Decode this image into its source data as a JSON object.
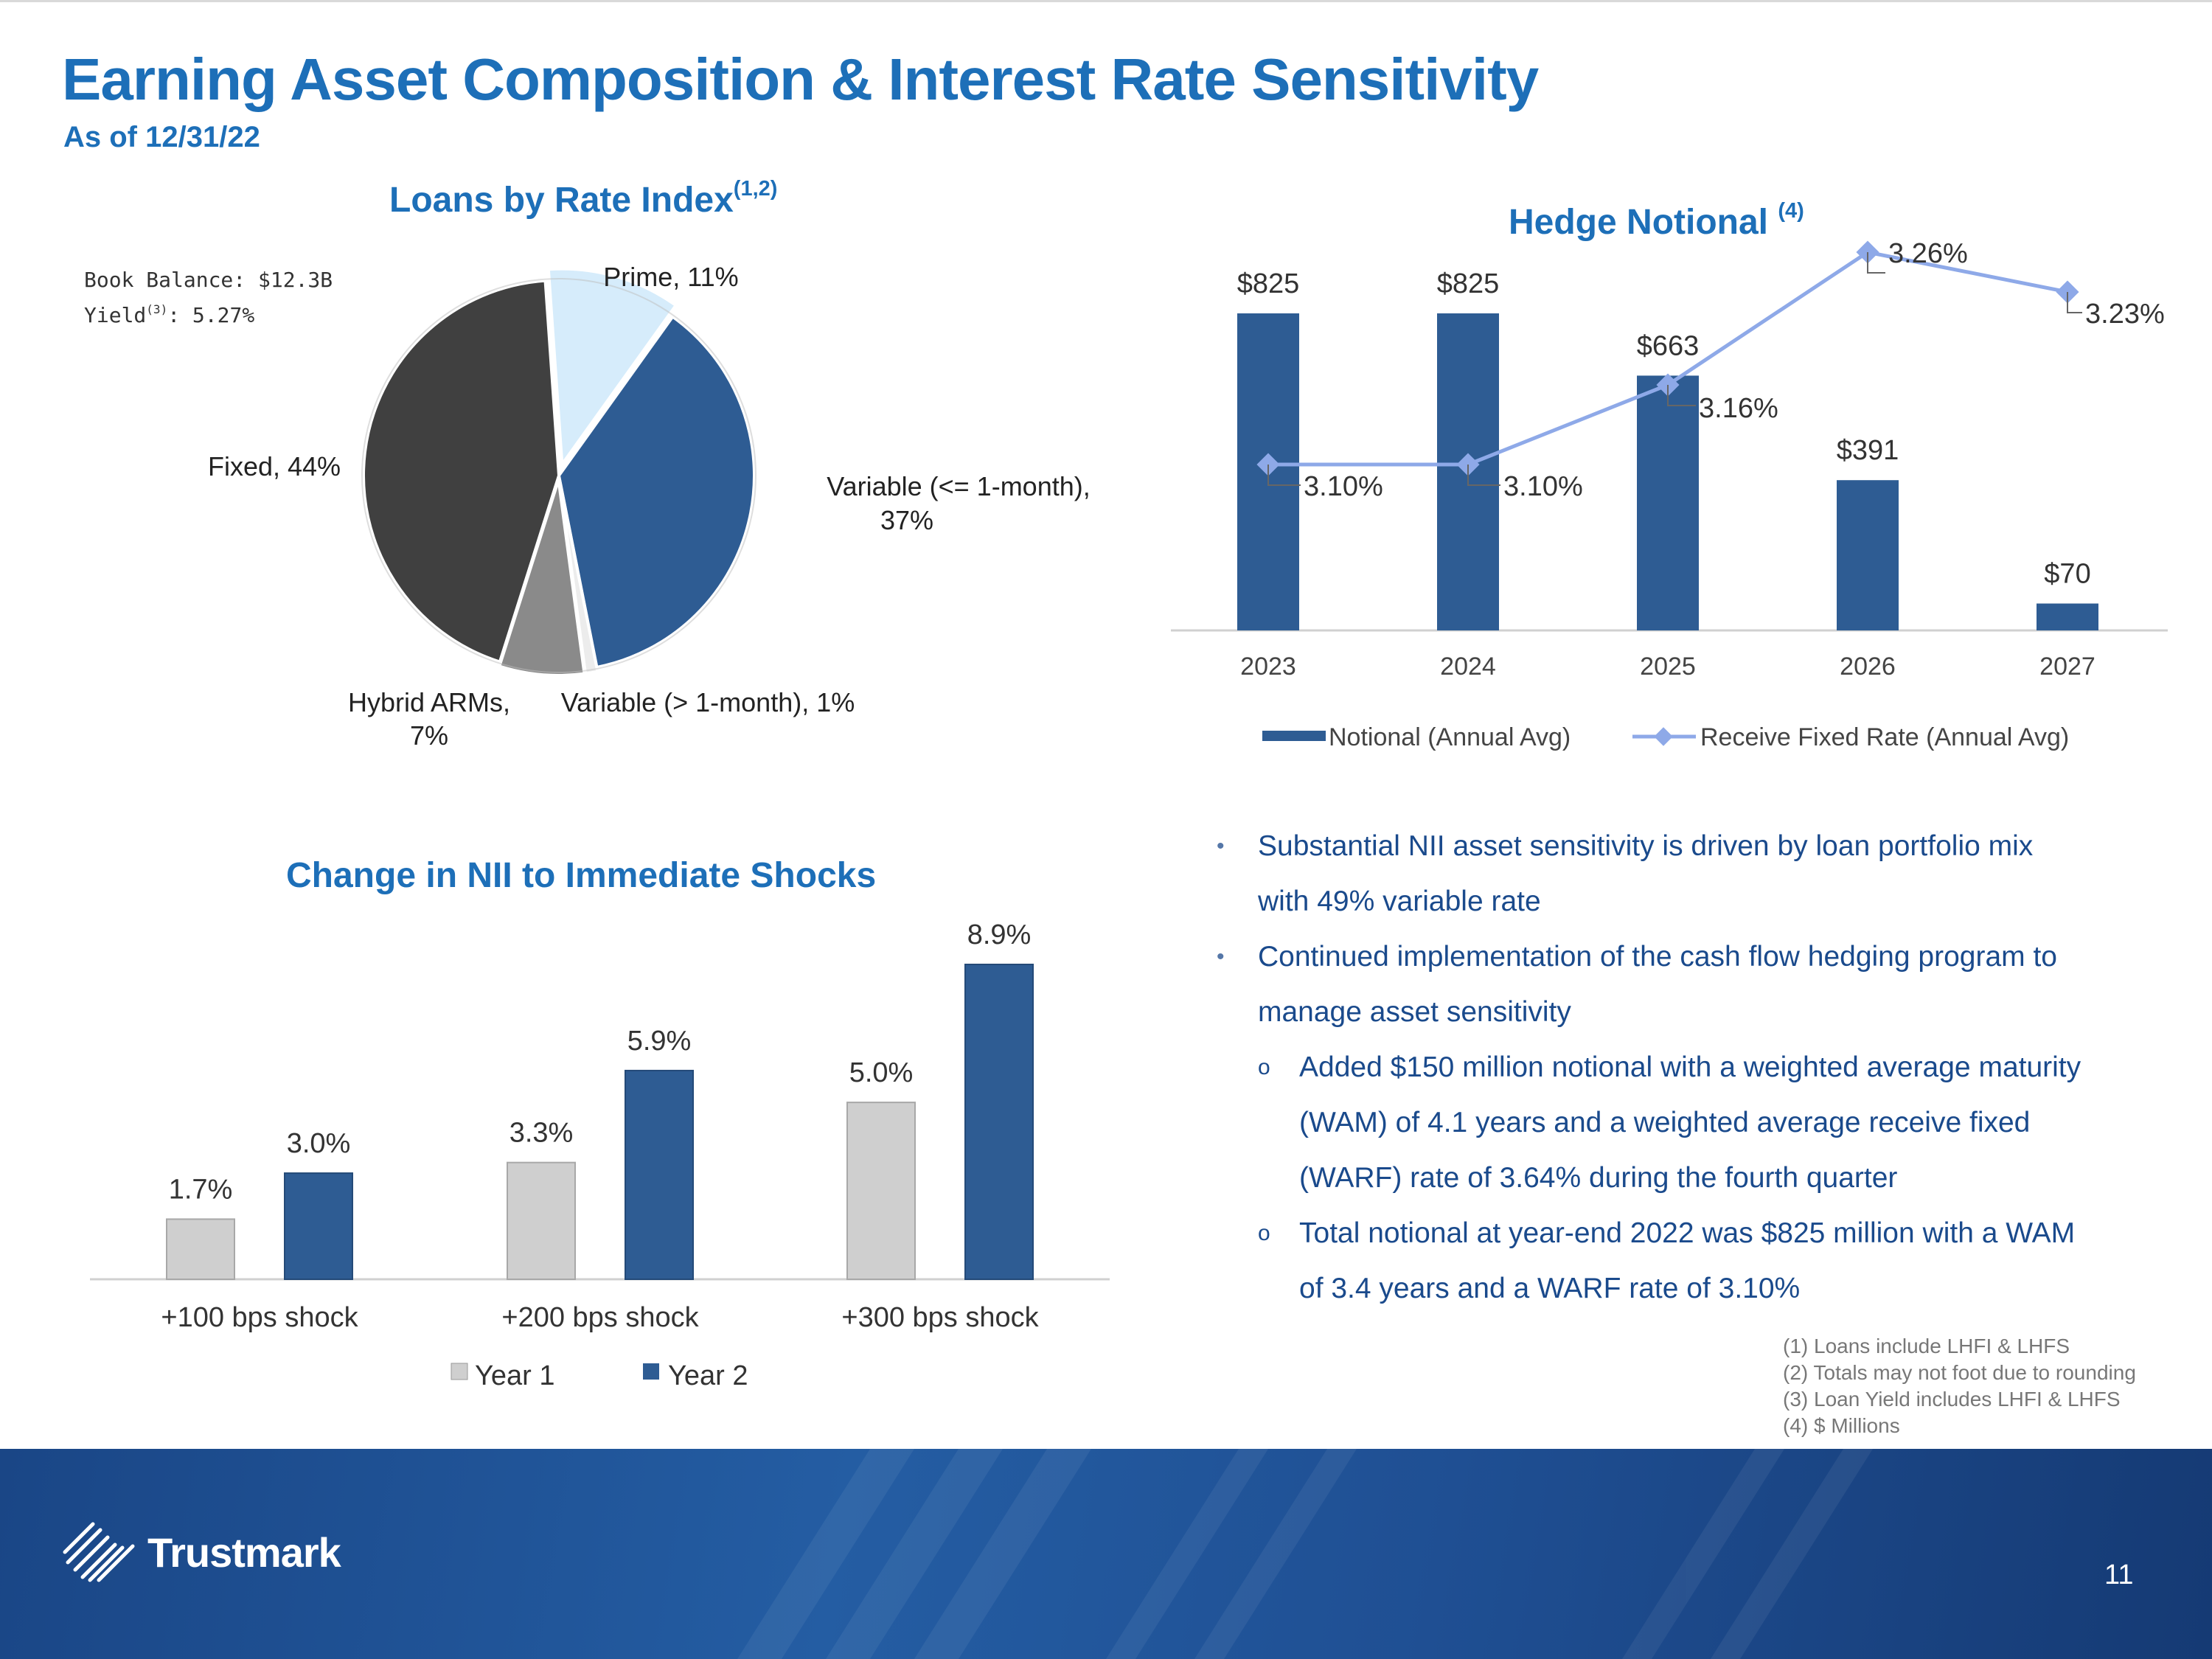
{
  "header": {
    "title": "Earning Asset Composition & Interest Rate Sensitivity",
    "subtitle": "As of 12/31/22"
  },
  "pie": {
    "title": "Loans by Rate Index",
    "title_sup": "(1,2)",
    "book_balance": "Book Balance: $12.3B",
    "yield_label": "Yield",
    "yield_sup": "(3)",
    "yield_value": ": 5.27%"
  },
  "hedge": {
    "title": "Hedge Notional",
    "title_sup": "(4)",
    "legend_bar": "Notional (Annual Avg)",
    "legend_line": "Receive Fixed Rate (Annual Avg)"
  },
  "nii": {
    "title": "Change in NII to Immediate Shocks",
    "legend": [
      "Year 1",
      "Year 2"
    ]
  },
  "chart_data": [
    {
      "type": "pie",
      "title": "Loans by Rate Index(1,2)",
      "labels": [
        "Prime",
        "Variable (<= 1-month)",
        "Variable (> 1-month)",
        "Hybrid ARMs",
        "Fixed"
      ],
      "values": [
        11,
        37,
        1,
        7,
        44
      ],
      "display_labels": [
        [
          "Prime, 11%"
        ],
        [
          "Variable (<= 1-month),",
          "37%"
        ],
        [
          "Variable (> 1-month), 1%"
        ],
        [
          "Hybrid ARMs,",
          "7%"
        ],
        [
          "Fixed, 44%"
        ]
      ],
      "colors": [
        "#d6ecfb",
        "#2e5c93",
        "#ececec",
        "#8a8a8a",
        "#404040"
      ]
    },
    {
      "type": "bar+line",
      "title": "Hedge Notional (4)",
      "categories": [
        "2023",
        "2024",
        "2025",
        "2026",
        "2027"
      ],
      "series": [
        {
          "name": "Notional (Annual Avg)",
          "type": "bar",
          "values": [
            825,
            825,
            663,
            391,
            70
          ],
          "labels": [
            "$825",
            "$825",
            "$663",
            "$391",
            "$70"
          ]
        },
        {
          "name": "Receive Fixed Rate (Annual Avg)",
          "type": "line",
          "values": [
            3.1,
            3.1,
            3.16,
            3.26,
            3.23
          ],
          "labels": [
            "3.10%",
            "3.10%",
            "3.16%",
            "3.26%",
            "3.23%"
          ]
        }
      ],
      "bar_ylim": [
        0,
        1000
      ],
      "line_ylim": [
        2.8,
        3.3
      ],
      "colors": {
        "bar": "#2e5c93",
        "line": "#8ea9e8"
      }
    },
    {
      "type": "bar",
      "title": "Change in NII to Immediate Shocks",
      "categories": [
        "+100 bps shock",
        "+200 bps shock",
        "+300 bps shock"
      ],
      "series": [
        {
          "name": "Year 1",
          "values": [
            1.7,
            3.3,
            5.0
          ],
          "labels": [
            "1.7%",
            "3.3%",
            "5.0%"
          ]
        },
        {
          "name": "Year 2",
          "values": [
            3.0,
            5.9,
            8.9
          ],
          "labels": [
            "3.0%",
            "5.9%",
            "8.9%"
          ]
        }
      ],
      "ylim": [
        0,
        10
      ],
      "colors": {
        "Year 1": "#cfcfcf",
        "Year 2": "#2e5c93"
      }
    }
  ],
  "bullets": [
    {
      "level": 1,
      "lines": [
        "Substantial NII asset sensitivity is driven by loan portfolio mix",
        "with 49% variable rate"
      ]
    },
    {
      "level": 1,
      "lines": [
        "Continued implementation of the cash flow hedging program to",
        "manage asset sensitivity"
      ]
    },
    {
      "level": 2,
      "lines": [
        "Added $150 million notional with a weighted average maturity",
        "(WAM) of 4.1 years and a weighted average receive fixed",
        "(WARF) rate of 3.64% during the fourth quarter"
      ]
    },
    {
      "level": 2,
      "lines": [
        "Total notional at year-end 2022 was $825 million with a WAM",
        "of 3.4 years and a WARF rate of 3.10%"
      ]
    }
  ],
  "bullet_markers": {
    "level1": "•",
    "level2": "o"
  },
  "footnotes": [
    "(1) Loans include LHFI & LHFS",
    "(2) Totals may not foot due to rounding",
    "(3) Loan Yield includes LHFI & LHFS",
    "(4) $ Millions"
  ],
  "footer": {
    "brand": "Trustmark",
    "page_number": "11"
  }
}
